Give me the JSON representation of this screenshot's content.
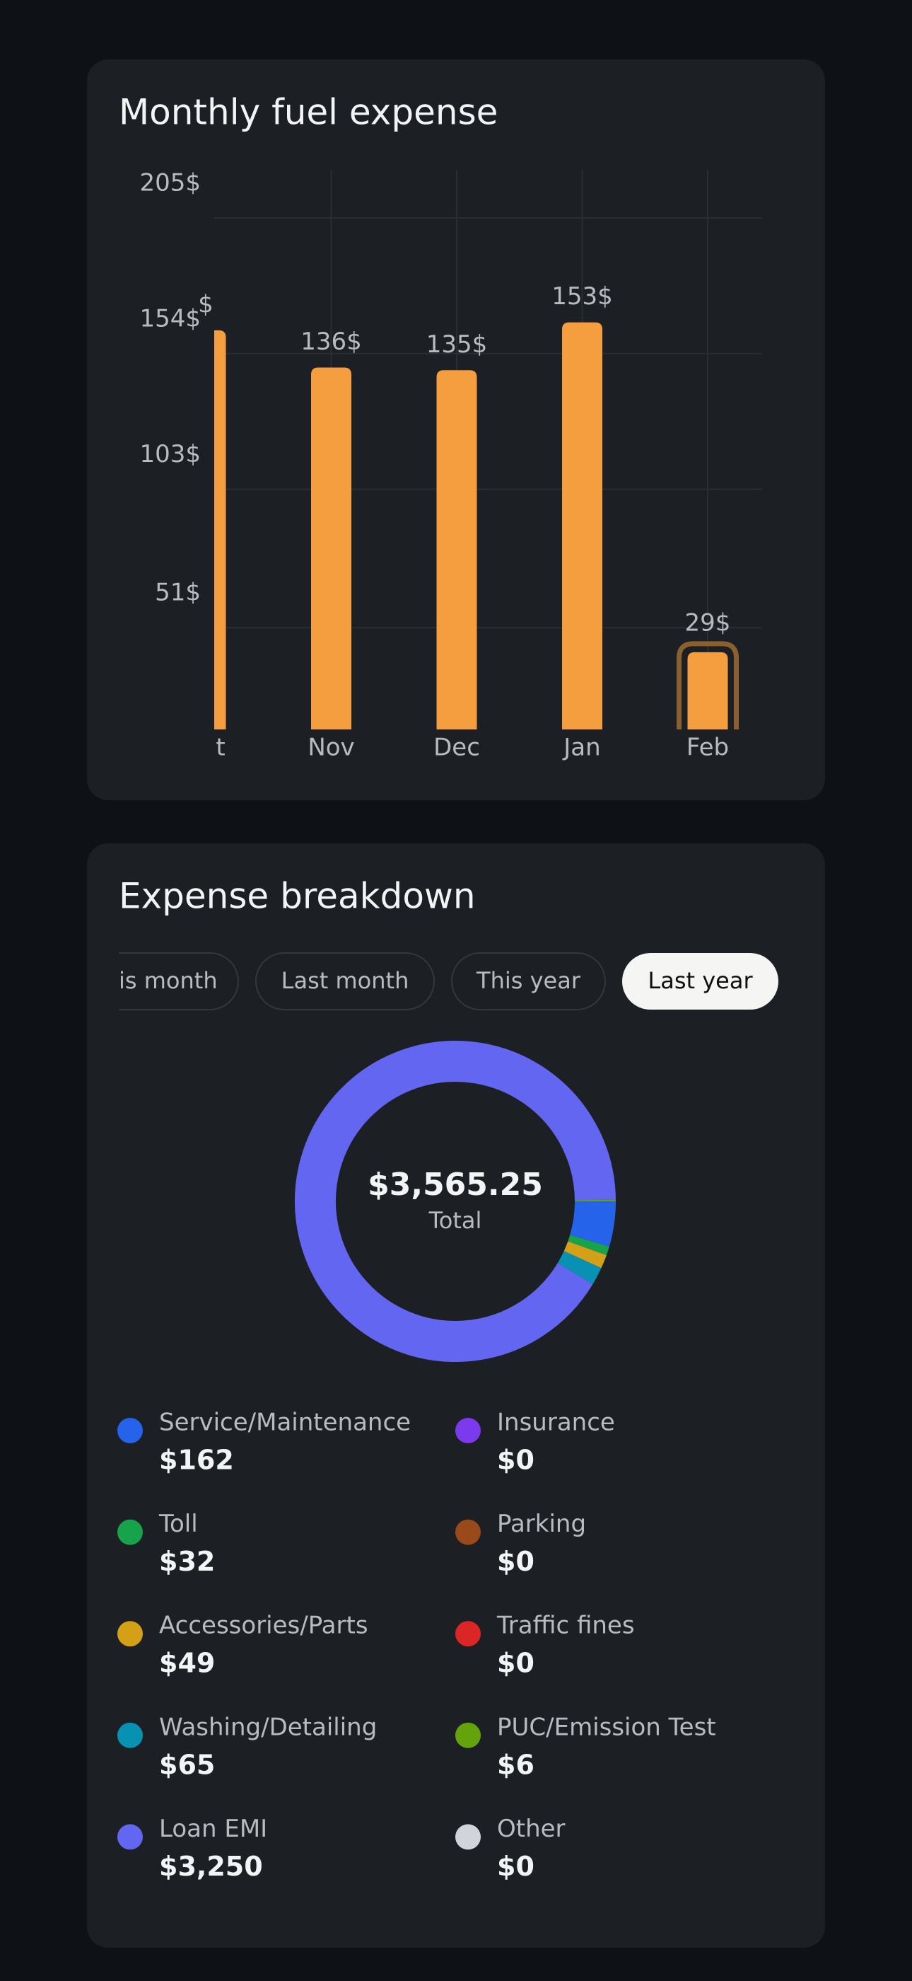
{
  "chart_data": [
    {
      "type": "bar",
      "title": "Monthly fuel expense",
      "categories": [
        "t",
        "Nov",
        "Dec",
        "Jan",
        "Feb"
      ],
      "values": [
        150,
        136,
        135,
        153,
        29
      ],
      "value_labels": [
        "$",
        "136$",
        "135$",
        "153$",
        "29$"
      ],
      "color": "#f59e3f",
      "highlight_color": "#8a6030",
      "highlighted_index": 4,
      "ylim": [
        0,
        205
      ],
      "yticks": [
        {
          "value": 51,
          "label": "51$"
        },
        {
          "value": 103,
          "label": "103$"
        },
        {
          "value": 154,
          "label": "154$"
        },
        {
          "value": 205,
          "label": "205$"
        }
      ],
      "grid": true
    },
    {
      "type": "donut",
      "title": "Expense breakdown",
      "tabs": [
        "is month",
        "Last month",
        "This year",
        "Last year"
      ],
      "selected_tab": 3,
      "center_value": "$3,565.25",
      "center_caption": "Total",
      "categories": [
        "Service/Maintenance",
        "Toll",
        "Accessories/Parts",
        "Washing/Detailing",
        "Loan EMI",
        "Insurance",
        "Parking",
        "Traffic fines",
        "PUC/Emission Test",
        "Other"
      ],
      "values": [
        162,
        32,
        49,
        65,
        3250,
        0,
        0,
        0,
        6,
        0
      ],
      "value_labels": [
        "$162",
        "$32",
        "$49",
        "$65",
        "$3,250",
        "$0",
        "$0",
        "$0",
        "$6",
        "$0"
      ],
      "colors": [
        "#2563eb",
        "#16a34a",
        "#d4a017",
        "#0891b2",
        "#6366f1",
        "#7c3aed",
        "#9a4a1a",
        "#dc2626",
        "#65a30d",
        "#d1d5db"
      ]
    }
  ]
}
